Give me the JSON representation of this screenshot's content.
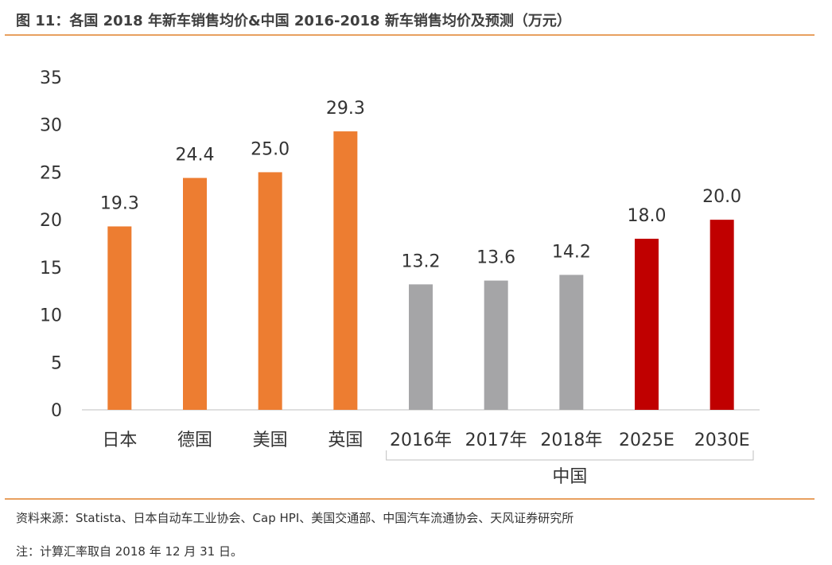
{
  "title": "图 11：各国 2018 年新车销售均价&中国 2016-2018 新车销售均价及预测（万元）",
  "source": "资料来源：Statista、日本自动车工业协会、Cap HPI、美国交通部、中国汽车流通协会、天风证券研究所",
  "note": "注：计算汇率取自 2018 年 12 月 31 日。",
  "chart_data": {
    "type": "bar",
    "title": "",
    "xlabel": "",
    "ylabel": "",
    "ylim": [
      0,
      35
    ],
    "yticks": [
      0,
      5,
      10,
      15,
      20,
      25,
      30,
      35
    ],
    "grid": false,
    "categories": [
      "日本",
      "德国",
      "美国",
      "英国",
      "2016年",
      "2017年",
      "2018年",
      "2025E",
      "2030E"
    ],
    "values": [
      19.3,
      24.4,
      25.0,
      29.3,
      13.2,
      13.6,
      14.2,
      18.0,
      20.0
    ],
    "data_labels": [
      "19.3",
      "24.4",
      "25.0",
      "29.3",
      "13.2",
      "13.6",
      "14.2",
      "18.0",
      "20.0"
    ],
    "bar_colors": [
      "#ED7D31",
      "#ED7D31",
      "#ED7D31",
      "#ED7D31",
      "#A5A5A7",
      "#A5A5A7",
      "#A5A5A7",
      "#C00000",
      "#C00000"
    ],
    "group_label": "中国",
    "group_range": [
      "2016年",
      "2030E"
    ]
  }
}
